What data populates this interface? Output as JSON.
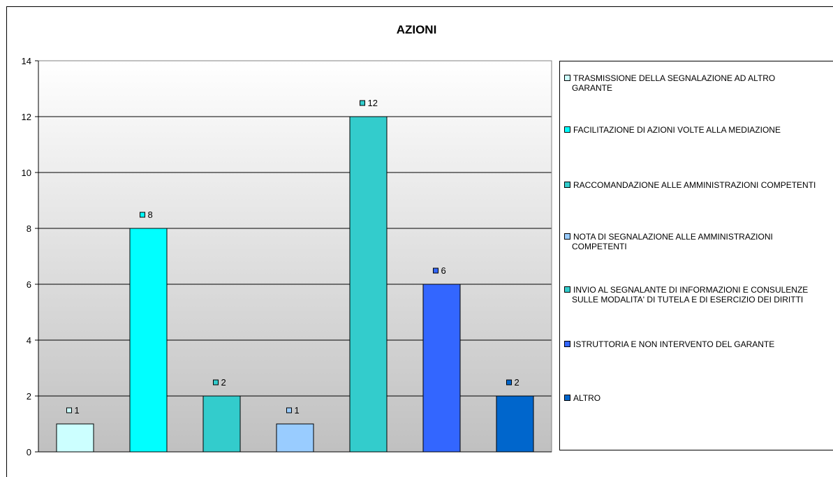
{
  "chart_data": {
    "type": "bar",
    "title": "AZIONI",
    "xlabel": "",
    "ylabel": "",
    "ylim": [
      0,
      14
    ],
    "yticks": [
      0,
      2,
      4,
      6,
      8,
      10,
      12,
      14
    ],
    "grid": true,
    "legend_position": "right",
    "categories": [
      "TRASMISSIONE DELLA SEGNALAZIONE AD ALTRO GARANTE",
      "FACILITAZIONE DI AZIONI VOLTE ALLA MEDIAZIONE",
      "RACCOMANDAZIONE ALLE AMMINISTRAZIONI COMPETENTI",
      "NOTA DI SEGNALAZIONE ALLE AMMINISTRAZIONI COMPETENTI",
      "INVIO AL SEGNALANTE DI INFORMAZIONI E CONSULENZE SULLE MODALITA' DI TUTELA E DI ESERCIZIO DEI DIRITTI",
      "ISTRUTTORIA E NON INTERVENTO DEL GARANTE",
      "ALTRO"
    ],
    "values": [
      1,
      8,
      2,
      1,
      12,
      6,
      2
    ],
    "data_labels": [
      "1",
      "8",
      "2",
      "1",
      "12",
      "6",
      "2"
    ],
    "colors": [
      "#CCFFFF",
      "#00FFFF",
      "#33CCCC",
      "#99CCFF",
      "#33CCCC",
      "#3366FF",
      "#0066CC"
    ]
  },
  "legend": {
    "items": [
      {
        "line1": "TRASMISSIONE DELLA SEGNALAZIONE AD ALTRO",
        "line2": "GARANTE"
      },
      {
        "line1": "FACILITAZIONE DI AZIONI VOLTE ALLA MEDIAZIONE",
        "line2": ""
      },
      {
        "line1": "RACCOMANDAZIONE ALLE AMMINISTRAZIONI COMPETENTI",
        "line2": ""
      },
      {
        "line1": "NOTA DI SEGNALAZIONE ALLE AMMINISTRAZIONI",
        "line2": "COMPETENTI"
      },
      {
        "line1": "INVIO AL SEGNALANTE DI INFORMAZIONI E CONSULENZE",
        "line2": "SULLE MODALITA' DI TUTELA E DI ESERCIZIO DEI DIRITTI"
      },
      {
        "line1": "ISTRUTTORIA E NON INTERVENTO DEL GARANTE",
        "line2": ""
      },
      {
        "line1": "ALTRO",
        "line2": ""
      }
    ]
  }
}
